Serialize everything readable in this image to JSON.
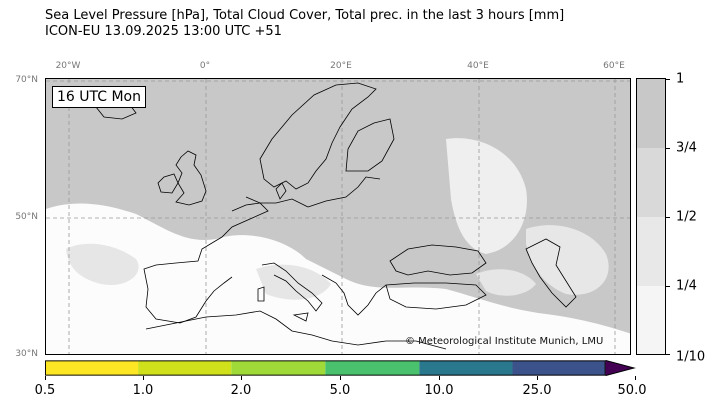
{
  "header": {
    "title_line1": "Sea Level Pressure [hPa], Total Cloud Cover, Total prec. in the last 3 hours [mm]",
    "title_line2": "ICON-EU 13.09.2025 13:00 UTC +51"
  },
  "map": {
    "time_label": "16 UTC Mon",
    "copyright": "© Meteorological Institute Munich, LMU",
    "lon_labels": [
      "20°W",
      "0°",
      "20°E",
      "40°E",
      "60°E"
    ],
    "lat_labels": [
      "70°N",
      "50°N",
      "30°N"
    ],
    "colors": {
      "ocean_overcast": "#c8c8c8",
      "clear": "#ffffff",
      "coastline": "#000000",
      "grid": "#999999"
    }
  },
  "cloud_colorbar": {
    "ticks": [
      "1",
      "3/4",
      "1/2",
      "1/4",
      "1/10"
    ],
    "segment_colors": [
      "#c8c8c8",
      "#d9d9d9",
      "#e8e8e8",
      "#f5f5f5"
    ]
  },
  "precip_colorbar": {
    "ticks": [
      "0.5",
      "1.0",
      "2.0",
      "5.0",
      "10.0",
      "25.0",
      "50.0"
    ],
    "segment_colors": [
      "#fde725",
      "#d0e11c",
      "#a0da39",
      "#4ac16d",
      "#2a788e",
      "#3b528b",
      "#440154"
    ]
  }
}
